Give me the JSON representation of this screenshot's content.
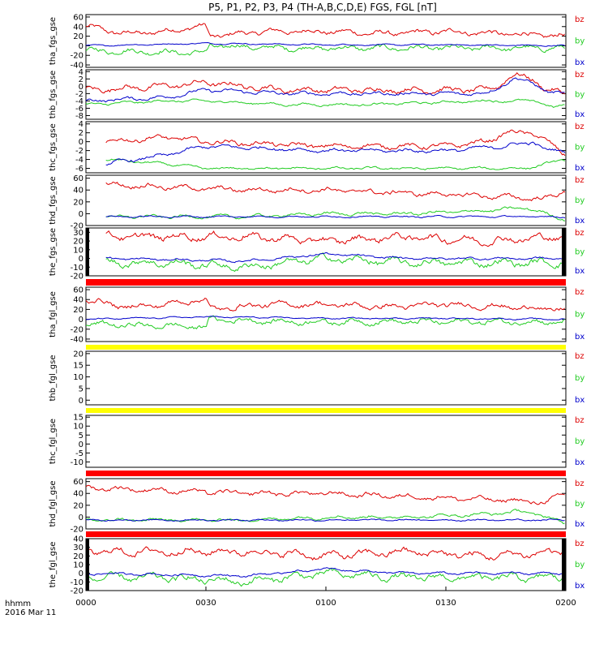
{
  "title": "P5, P1, P2, P3, P4 (TH-A,B,C,D,E) FGS, FGL [nT]",
  "footer": {
    "unit": "hhmm",
    "date": "2016 Mar 11"
  },
  "x_ticks": [
    "0000",
    "0030",
    "0100",
    "0130",
    "0200"
  ],
  "legend": [
    "bz",
    "by",
    "bx"
  ],
  "colors": {
    "bz": "#dd0000",
    "by": "#22cc22",
    "bx": "#0000cc",
    "bar_red": "#ff0000",
    "bar_yellow": "#ffff00"
  },
  "chart_data": [
    {
      "type": "line",
      "ylabel": "tha_fgs_gse",
      "yticks": [
        "60",
        "40",
        "20",
        "0",
        "-20",
        "-40"
      ],
      "ylim": [
        -45,
        65
      ],
      "x_range_min": [
        0,
        120
      ],
      "series": [
        {
          "name": "bz",
          "anchors": [
            [
              0,
              40
            ],
            [
              10,
              25
            ],
            [
              20,
              30
            ],
            [
              28,
              40
            ],
            [
              30,
              40
            ],
            [
              31,
              20
            ],
            [
              45,
              30
            ],
            [
              60,
              30
            ],
            [
              75,
              25
            ],
            [
              90,
              30
            ],
            [
              105,
              25
            ],
            [
              120,
              20
            ]
          ],
          "noise": 8
        },
        {
          "name": "by",
          "anchors": [
            [
              0,
              -10
            ],
            [
              30,
              -15
            ],
            [
              31,
              0
            ],
            [
              50,
              -5
            ],
            [
              75,
              -5
            ],
            [
              105,
              -5
            ],
            [
              120,
              -5
            ]
          ],
          "noise": 8
        },
        {
          "name": "bx",
          "anchors": [
            [
              0,
              0
            ],
            [
              30,
              5
            ],
            [
              60,
              2
            ],
            [
              90,
              2
            ],
            [
              120,
              0
            ]
          ],
          "noise": 2
        }
      ]
    },
    {
      "type": "line",
      "ylabel": "thb_fgs_gse",
      "yticks": [
        "4",
        "2",
        "0",
        "-2",
        "-4",
        "-6",
        "-8"
      ],
      "ylim": [
        -9,
        4.5
      ],
      "x_range_min": [
        0,
        120
      ],
      "series": [
        {
          "name": "bz",
          "anchors": [
            [
              0,
              -1
            ],
            [
              20,
              0
            ],
            [
              30,
              1
            ],
            [
              50,
              -1
            ],
            [
              70,
              -1
            ],
            [
              100,
              -1
            ],
            [
              103,
              0
            ],
            [
              105,
              2
            ],
            [
              107,
              3
            ],
            [
              112,
              2
            ],
            [
              115,
              -1
            ],
            [
              120,
              -2
            ]
          ],
          "noise": 1.1
        },
        {
          "name": "by",
          "anchors": [
            [
              0,
              -5
            ],
            [
              20,
              -4
            ],
            [
              30,
              -4
            ],
            [
              50,
              -5
            ],
            [
              70,
              -5
            ],
            [
              100,
              -4
            ],
            [
              113,
              -4
            ],
            [
              117,
              -6
            ],
            [
              120,
              -5
            ]
          ],
          "noise": 0.5
        },
        {
          "name": "bx",
          "anchors": [
            [
              0,
              -4
            ],
            [
              20,
              -3
            ],
            [
              30,
              -1
            ],
            [
              50,
              -2
            ],
            [
              70,
              -2
            ],
            [
              100,
              -2
            ],
            [
              107,
              2
            ],
            [
              112,
              1
            ],
            [
              116,
              -2
            ],
            [
              120,
              -2
            ]
          ],
          "noise": 0.7
        }
      ]
    },
    {
      "type": "line",
      "ylabel": "thc_fgs_gse",
      "yticks": [
        "4",
        "2",
        "0",
        "-2",
        "-4",
        "-6"
      ],
      "ylim": [
        -7,
        4.5
      ],
      "x_range_min": [
        5,
        120
      ],
      "series": [
        {
          "name": "bz",
          "anchors": [
            [
              5,
              0
            ],
            [
              20,
              1
            ],
            [
              30,
              0
            ],
            [
              60,
              -1
            ],
            [
              90,
              -1
            ],
            [
              100,
              0
            ],
            [
              105,
              2
            ],
            [
              112,
              2
            ],
            [
              120,
              -3
            ]
          ],
          "noise": 0.8
        },
        {
          "name": "by",
          "anchors": [
            [
              5,
              -4
            ],
            [
              20,
              -5
            ],
            [
              30,
              -6
            ],
            [
              60,
              -6
            ],
            [
              90,
              -6
            ],
            [
              110,
              -6
            ],
            [
              120,
              -4
            ]
          ],
          "noise": 0.4
        },
        {
          "name": "bx",
          "anchors": [
            [
              5,
              -5
            ],
            [
              20,
              -3
            ],
            [
              30,
              -1
            ],
            [
              60,
              -2
            ],
            [
              90,
              -2
            ],
            [
              105,
              -1
            ],
            [
              112,
              0
            ],
            [
              115,
              -2
            ],
            [
              120,
              -2
            ]
          ],
          "noise": 0.6
        }
      ]
    },
    {
      "type": "line",
      "ylabel": "thd_fgs_gse",
      "yticks": [
        "60",
        "40",
        "20",
        "0",
        "-20"
      ],
      "ylim": [
        -20,
        65
      ],
      "x_range_min": [
        5,
        120
      ],
      "series": [
        {
          "name": "bz",
          "anchors": [
            [
              5,
              50
            ],
            [
              20,
              45
            ],
            [
              40,
              40
            ],
            [
              60,
              40
            ],
            [
              80,
              35
            ],
            [
              100,
              30
            ],
            [
              115,
              25
            ],
            [
              120,
              40
            ]
          ],
          "noise": 6
        },
        {
          "name": "by",
          "anchors": [
            [
              5,
              -5
            ],
            [
              40,
              -5
            ],
            [
              60,
              0
            ],
            [
              80,
              0
            ],
            [
              100,
              5
            ],
            [
              110,
              10
            ],
            [
              115,
              0
            ],
            [
              120,
              -10
            ]
          ],
          "noise": 4
        },
        {
          "name": "bx",
          "anchors": [
            [
              5,
              -5
            ],
            [
              40,
              -5
            ],
            [
              60,
              -5
            ],
            [
              100,
              -5
            ],
            [
              120,
              -5
            ]
          ],
          "noise": 2
        }
      ]
    },
    {
      "type": "line",
      "ylabel": "the_fgs_gse",
      "yticks": [
        "30",
        "20",
        "10",
        "0",
        "-10",
        "-20"
      ],
      "ylim": [
        -20,
        35
      ],
      "x_range_min": [
        5,
        120
      ],
      "series": [
        {
          "name": "bz",
          "anchors": [
            [
              5,
              25
            ],
            [
              20,
              25
            ],
            [
              40,
              25
            ],
            [
              60,
              20
            ],
            [
              80,
              25
            ],
            [
              100,
              20
            ],
            [
              120,
              25
            ]
          ],
          "noise": 6
        },
        {
          "name": "by",
          "anchors": [
            [
              5,
              -5
            ],
            [
              20,
              -5
            ],
            [
              40,
              -10
            ],
            [
              60,
              0
            ],
            [
              80,
              -5
            ],
            [
              100,
              -5
            ],
            [
              120,
              -5
            ]
          ],
          "noise": 6
        },
        {
          "name": "bx",
          "anchors": [
            [
              5,
              0
            ],
            [
              40,
              -3
            ],
            [
              60,
              5
            ],
            [
              80,
              0
            ],
            [
              100,
              0
            ],
            [
              120,
              0
            ]
          ],
          "noise": 2
        }
      ]
    },
    {
      "type": "line",
      "ylabel": "tha_fgl_gse",
      "yticks": [
        "60",
        "40",
        "20",
        "0",
        "-20",
        "-40"
      ],
      "ylim": [
        -45,
        65
      ],
      "x_range_min": [
        0,
        120
      ],
      "series": [
        {
          "name": "bz",
          "anchors": [
            [
              0,
              40
            ],
            [
              10,
              25
            ],
            [
              20,
              30
            ],
            [
              28,
              40
            ],
            [
              30,
              40
            ],
            [
              31,
              20
            ],
            [
              45,
              30
            ],
            [
              60,
              30
            ],
            [
              75,
              25
            ],
            [
              90,
              30
            ],
            [
              105,
              25
            ],
            [
              120,
              20
            ]
          ],
          "noise": 8
        },
        {
          "name": "by",
          "anchors": [
            [
              0,
              -10
            ],
            [
              30,
              -15
            ],
            [
              31,
              0
            ],
            [
              50,
              -5
            ],
            [
              75,
              -5
            ],
            [
              105,
              -5
            ],
            [
              120,
              -5
            ]
          ],
          "noise": 8
        },
        {
          "name": "bx",
          "anchors": [
            [
              0,
              0
            ],
            [
              30,
              5
            ],
            [
              60,
              2
            ],
            [
              90,
              2
            ],
            [
              120,
              0
            ]
          ],
          "noise": 2
        }
      ]
    },
    {
      "type": "line",
      "ylabel": "thb_fgl_gse",
      "yticks": [
        "20",
        "15",
        "10",
        "5",
        "0"
      ],
      "ylim": [
        -2,
        21
      ],
      "x_range_min": [
        0,
        120
      ],
      "series": []
    },
    {
      "type": "line",
      "ylabel": "thc_fgl_gse",
      "yticks": [
        "15",
        "10",
        "5",
        "0",
        "-5",
        "-10"
      ],
      "ylim": [
        -13,
        16
      ],
      "x_range_min": [
        0,
        120
      ],
      "series": []
    },
    {
      "type": "line",
      "ylabel": "thd_fgl_gse",
      "yticks": [
        "60",
        "40",
        "20",
        "0",
        "-20"
      ],
      "ylim": [
        -20,
        65
      ],
      "x_range_min": [
        0,
        120
      ],
      "series": [
        {
          "name": "bz",
          "anchors": [
            [
              0,
              50
            ],
            [
              20,
              45
            ],
            [
              40,
              40
            ],
            [
              60,
              40
            ],
            [
              80,
              35
            ],
            [
              100,
              30
            ],
            [
              115,
              25
            ],
            [
              120,
              40
            ]
          ],
          "noise": 6
        },
        {
          "name": "by",
          "anchors": [
            [
              0,
              -5
            ],
            [
              40,
              -5
            ],
            [
              60,
              0
            ],
            [
              80,
              0
            ],
            [
              100,
              5
            ],
            [
              110,
              10
            ],
            [
              115,
              0
            ],
            [
              120,
              -10
            ]
          ],
          "noise": 4
        },
        {
          "name": "bx",
          "anchors": [
            [
              0,
              -5
            ],
            [
              40,
              -5
            ],
            [
              60,
              -5
            ],
            [
              100,
              -5
            ],
            [
              120,
              -5
            ]
          ],
          "noise": 2
        }
      ]
    },
    {
      "type": "line",
      "ylabel": "the_fgl_gse",
      "yticks": [
        "40",
        "30",
        "20",
        "10",
        "0",
        "-10",
        "-20"
      ],
      "ylim": [
        -20,
        40
      ],
      "x_range_min": [
        0,
        120
      ],
      "series": [
        {
          "name": "bz",
          "anchors": [
            [
              0,
              25
            ],
            [
              20,
              25
            ],
            [
              40,
              25
            ],
            [
              60,
              20
            ],
            [
              80,
              25
            ],
            [
              100,
              20
            ],
            [
              120,
              25
            ]
          ],
          "noise": 6
        },
        {
          "name": "by",
          "anchors": [
            [
              0,
              -5
            ],
            [
              20,
              -5
            ],
            [
              40,
              -10
            ],
            [
              60,
              0
            ],
            [
              80,
              -5
            ],
            [
              100,
              -5
            ],
            [
              120,
              -5
            ]
          ],
          "noise": 6
        },
        {
          "name": "bx",
          "anchors": [
            [
              0,
              0
            ],
            [
              40,
              -3
            ],
            [
              60,
              5
            ],
            [
              80,
              0
            ],
            [
              100,
              0
            ],
            [
              120,
              0
            ]
          ],
          "noise": 2
        }
      ]
    }
  ]
}
